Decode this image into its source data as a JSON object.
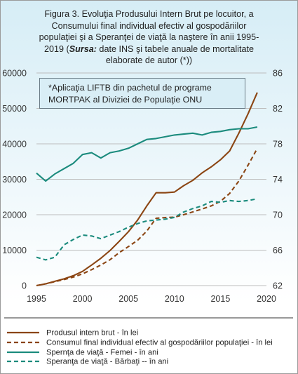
{
  "title": {
    "line1": "Figura 3. Evoluţia Produsului  Intern Brut pe locuitor, a",
    "line2": "Consumului  final individual  efectiv al gospodăriilor",
    "line3": "populaţiei  şi a Speranţei de viaţă la naştere în anii 1995-",
    "line4_a": "2019 (",
    "line4_src": "Sursa:",
    "line4_b": " date INS şi tabele anuale de mortalitate",
    "line5": "elaborate de autor (*))"
  },
  "note": {
    "line1": "*Aplicaţia LIFTB din pachetul de programe",
    "line2": "MORTPAK al Diviziei de Populaţie  ONU"
  },
  "chart_data": {
    "type": "line",
    "x_ticks": [
      "1995",
      "2000",
      "2005",
      "2010",
      "2015",
      "2020"
    ],
    "y_left_ticks": [
      "0",
      "10000",
      "20000",
      "30000",
      "40000",
      "50000",
      "60000"
    ],
    "y_right_ticks": [
      "62",
      "66",
      "70",
      "74",
      "78",
      "82",
      "86"
    ],
    "xlim": [
      1995,
      2020
    ],
    "ylim_left": [
      0,
      60000
    ],
    "ylim_right": [
      62,
      86
    ],
    "grid": true,
    "legend_position": "bottom",
    "series": [
      {
        "name": "Produsul intern brut - în lei",
        "axis": "left",
        "color": "#8b4513",
        "dash": "solid",
        "points": [
          [
            1995,
            0
          ],
          [
            1996,
            500
          ],
          [
            1997,
            1200
          ],
          [
            1998,
            1900
          ],
          [
            1999,
            2800
          ],
          [
            2000,
            4000
          ],
          [
            2001,
            5800
          ],
          [
            2002,
            7700
          ],
          [
            2003,
            9900
          ],
          [
            2004,
            12500
          ],
          [
            2005,
            15200
          ],
          [
            2006,
            18500
          ],
          [
            2007,
            22500
          ],
          [
            2008,
            26200
          ],
          [
            2009,
            26200
          ],
          [
            2010,
            26400
          ],
          [
            2011,
            28200
          ],
          [
            2012,
            29700
          ],
          [
            2013,
            31800
          ],
          [
            2014,
            33500
          ],
          [
            2015,
            35500
          ],
          [
            2016,
            38000
          ],
          [
            2017,
            43000
          ],
          [
            2018,
            48500
          ],
          [
            2019,
            54500
          ]
        ]
      },
      {
        "name": "Consumul final individual efectiv al gospodăriilor populaţiei - în lei",
        "axis": "left",
        "color": "#8b4513",
        "dash": "dashed",
        "points": [
          [
            1995,
            0
          ],
          [
            1996,
            500
          ],
          [
            1997,
            1100
          ],
          [
            1998,
            1700
          ],
          [
            1999,
            2400
          ],
          [
            2000,
            3300
          ],
          [
            2001,
            4500
          ],
          [
            2002,
            5800
          ],
          [
            2003,
            7300
          ],
          [
            2004,
            9300
          ],
          [
            2005,
            11000
          ],
          [
            2006,
            12800
          ],
          [
            2007,
            15400
          ],
          [
            2008,
            19000
          ],
          [
            2009,
            19200
          ],
          [
            2010,
            19300
          ],
          [
            2011,
            20000
          ],
          [
            2012,
            20800
          ],
          [
            2013,
            21600
          ],
          [
            2014,
            22500
          ],
          [
            2015,
            23800
          ],
          [
            2016,
            26000
          ],
          [
            2017,
            29500
          ],
          [
            2018,
            34000
          ],
          [
            2019,
            38700
          ]
        ]
      },
      {
        "name": "Spernţa de viaţă - Femei - în ani",
        "axis": "right",
        "color": "#1b8b7d",
        "dash": "solid",
        "points": [
          [
            1995,
            74.7
          ],
          [
            1996,
            73.8
          ],
          [
            1997,
            74.6
          ],
          [
            1998,
            75.2
          ],
          [
            1999,
            75.8
          ],
          [
            2000,
            76.8
          ],
          [
            2001,
            77.0
          ],
          [
            2002,
            76.4
          ],
          [
            2003,
            77.0
          ],
          [
            2004,
            77.2
          ],
          [
            2005,
            77.5
          ],
          [
            2006,
            78.0
          ],
          [
            2007,
            78.5
          ],
          [
            2008,
            78.6
          ],
          [
            2009,
            78.8
          ],
          [
            2010,
            79.0
          ],
          [
            2011,
            79.1
          ],
          [
            2012,
            79.2
          ],
          [
            2013,
            79.0
          ],
          [
            2014,
            79.3
          ],
          [
            2015,
            79.4
          ],
          [
            2016,
            79.6
          ],
          [
            2017,
            79.7
          ],
          [
            2018,
            79.7
          ],
          [
            2019,
            79.9
          ]
        ]
      },
      {
        "name": "Speranţa de viaţă - Bărbaţi -- în ani",
        "axis": "right",
        "color": "#1b8b7d",
        "dash": "dashed",
        "points": [
          [
            1995,
            65.2
          ],
          [
            1996,
            64.9
          ],
          [
            1997,
            65.2
          ],
          [
            1998,
            66.6
          ],
          [
            1999,
            67.2
          ],
          [
            2000,
            67.7
          ],
          [
            2001,
            67.6
          ],
          [
            2002,
            67.3
          ],
          [
            2003,
            67.7
          ],
          [
            2004,
            68.1
          ],
          [
            2005,
            68.6
          ],
          [
            2006,
            69.0
          ],
          [
            2007,
            69.3
          ],
          [
            2008,
            69.4
          ],
          [
            2009,
            69.5
          ],
          [
            2010,
            69.7
          ],
          [
            2011,
            70.3
          ],
          [
            2012,
            70.7
          ],
          [
            2013,
            71.0
          ],
          [
            2014,
            71.5
          ],
          [
            2015,
            71.4
          ],
          [
            2016,
            71.6
          ],
          [
            2017,
            71.5
          ],
          [
            2018,
            71.6
          ],
          [
            2019,
            71.8
          ]
        ]
      }
    ]
  }
}
